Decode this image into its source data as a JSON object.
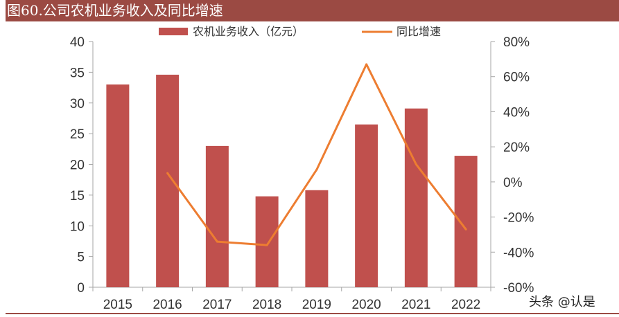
{
  "header": {
    "title": "图60.公司农机业务收入及同比增速"
  },
  "watermark": "头条 @认是",
  "colors": {
    "bar": "#c0504d",
    "line": "#ed7d31",
    "header_bg": "#9b4a43",
    "axis": "#a6a6a6"
  },
  "chart_data": {
    "type": "bar",
    "categories": [
      "2015",
      "2016",
      "2017",
      "2018",
      "2019",
      "2020",
      "2021",
      "2022"
    ],
    "series": [
      {
        "name": "农机业务收入（亿元）",
        "kind": "bar",
        "axis": "left",
        "values": [
          33.0,
          34.6,
          23.0,
          14.8,
          15.8,
          26.5,
          29.1,
          21.4
        ]
      },
      {
        "name": "同比增速",
        "kind": "line",
        "axis": "right",
        "values": [
          null,
          5,
          -34,
          -36,
          7,
          67,
          10,
          -27
        ]
      }
    ],
    "ylim_left": [
      0,
      40
    ],
    "yticks_left": [
      "0",
      "5",
      "10",
      "15",
      "20",
      "25",
      "30",
      "35",
      "40"
    ],
    "ylim_right": [
      -60,
      80
    ],
    "yticks_right": [
      "-60%",
      "-40%",
      "-20%",
      "0%",
      "20%",
      "40%",
      "60%",
      "80%"
    ],
    "legend_position": "top",
    "grid": false
  }
}
